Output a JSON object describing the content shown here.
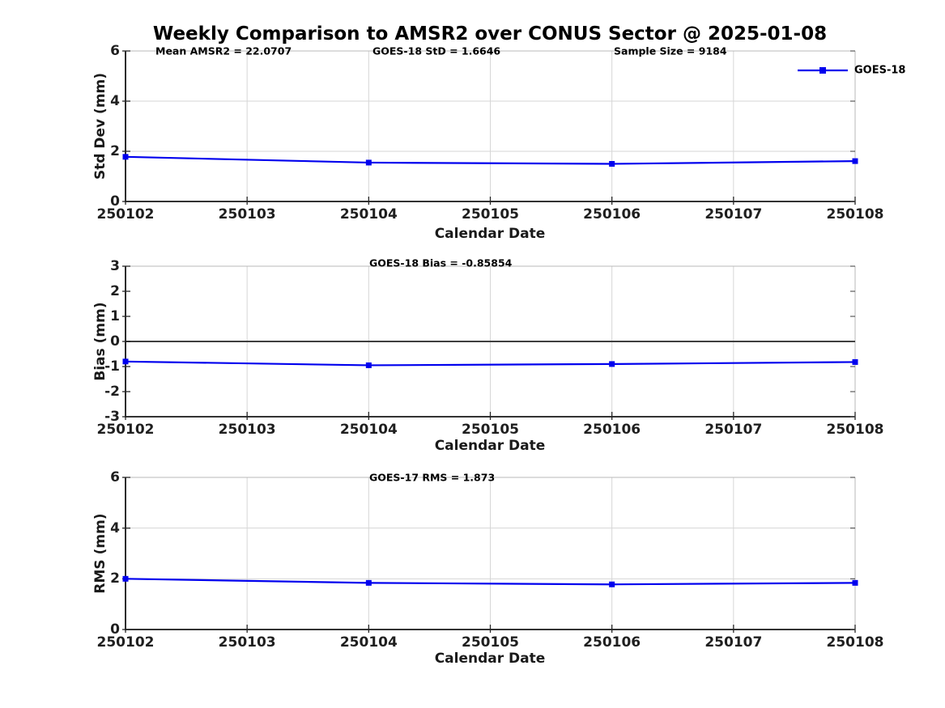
{
  "title": "Weekly Comparison to AMSR2 over CONUS Sector @ 2025-01-08",
  "colors": {
    "line": "#0000ee",
    "grid": "#d6d6d6",
    "box": "#b8b8b8",
    "axis": "#141414",
    "tick": "#262626",
    "zero_line": "#3f3f3f",
    "text": "#1a1a1a"
  },
  "chart_data": [
    {
      "type": "line",
      "name": "stddev",
      "ylabel": "Std Dev (mm)",
      "xlabel": "Calendar Date",
      "ylim": [
        0,
        6
      ],
      "yticks": [
        0,
        2,
        4,
        6
      ],
      "categories": [
        "250102",
        "250103",
        "250104",
        "250105",
        "250106",
        "250107",
        "250108"
      ],
      "grid": {
        "x": true,
        "y": true
      },
      "zero_line": false,
      "annotations": [
        {
          "text": "Mean AMSR2 = 22.0707"
        },
        {
          "text": "GOES-18 StD = 1.6646"
        },
        {
          "text": "Sample Size = 9184"
        }
      ],
      "legend": {
        "label": "GOES-18",
        "position": "top-right"
      },
      "series": [
        {
          "name": "GOES-18",
          "marker": "square",
          "x": [
            "250102",
            "250104",
            "250106",
            "250108"
          ],
          "values": [
            1.78,
            1.55,
            1.5,
            1.61
          ]
        }
      ]
    },
    {
      "type": "line",
      "name": "bias",
      "ylabel": "Bias (mm)",
      "xlabel": "Calendar Date",
      "ylim": [
        -3,
        3
      ],
      "yticks": [
        -3,
        -2,
        -1,
        0,
        1,
        2,
        3
      ],
      "categories": [
        "250102",
        "250103",
        "250104",
        "250105",
        "250106",
        "250107",
        "250108"
      ],
      "grid": {
        "x": true,
        "y": false
      },
      "zero_line": true,
      "annotations": [
        {
          "text": "GOES-18 Bias  = -0.85854"
        }
      ],
      "series": [
        {
          "name": "GOES-18",
          "marker": "square",
          "x": [
            "250102",
            "250104",
            "250106",
            "250108"
          ],
          "values": [
            -0.8,
            -0.95,
            -0.9,
            -0.82
          ]
        }
      ]
    },
    {
      "type": "line",
      "name": "rms",
      "ylabel": "RMS (mm)",
      "xlabel": "Calendar Date",
      "ylim": [
        0,
        6
      ],
      "yticks": [
        0,
        2,
        4,
        6
      ],
      "categories": [
        "250102",
        "250103",
        "250104",
        "250105",
        "250106",
        "250107",
        "250108"
      ],
      "grid": {
        "x": true,
        "y": true
      },
      "zero_line": false,
      "annotations": [
        {
          "text": "GOES-17 RMS = 1.873"
        }
      ],
      "series": [
        {
          "name": "GOES-18",
          "marker": "square",
          "x": [
            "250102",
            "250104",
            "250106",
            "250108"
          ],
          "values": [
            2.0,
            1.84,
            1.78,
            1.84
          ]
        }
      ]
    }
  ]
}
